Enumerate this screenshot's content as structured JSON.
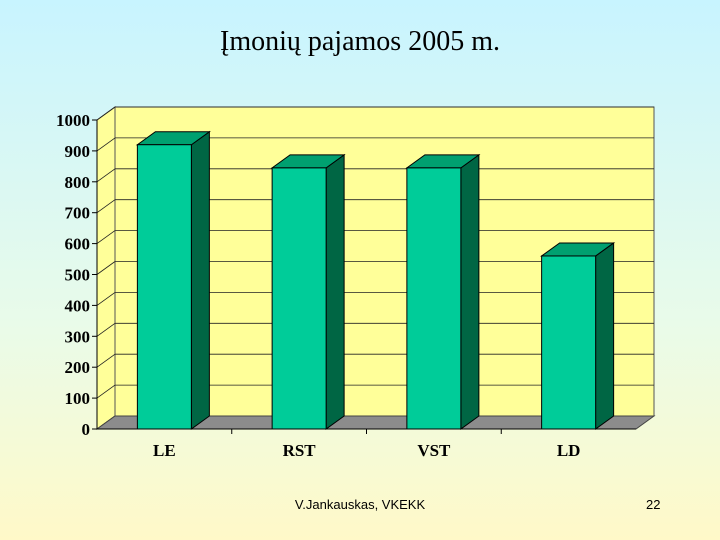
{
  "slide": {
    "title": "Įmonių pajamos 2005 m.",
    "author": "V.Jankauskas, VKEKK",
    "page_number": "22"
  },
  "colors": {
    "plot_back": "#ffff99",
    "floor": "#8c8c8c",
    "bar_front": "#00cc99",
    "bar_side": "#006644",
    "bar_top": "#00a070"
  },
  "chart_data": {
    "type": "bar",
    "title": "Įmonių pajamos 2005 m.",
    "categories": [
      "LE",
      "RST",
      "VST",
      "LD"
    ],
    "values": [
      920,
      845,
      845,
      560
    ],
    "xlabel": "",
    "ylabel": "",
    "ylim": [
      0,
      1000
    ],
    "yticks": [
      0,
      100,
      200,
      300,
      400,
      500,
      600,
      700,
      800,
      900,
      1000
    ],
    "grid": true,
    "legend": "none",
    "style": "3d-column"
  }
}
